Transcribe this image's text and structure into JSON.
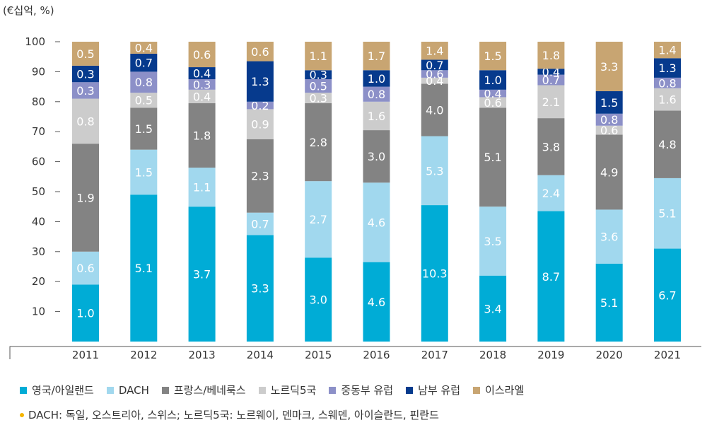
{
  "chart_data": {
    "type": "bar",
    "stacked": true,
    "unit_label": "(€십억, %)",
    "ylim": [
      0,
      100
    ],
    "yticks": [
      10,
      20,
      30,
      40,
      50,
      60,
      70,
      80,
      90,
      100
    ],
    "categories": [
      "2011",
      "2012",
      "2013",
      "2014",
      "2015",
      "2016",
      "2017",
      "2018",
      "2019",
      "2020",
      "2021"
    ],
    "series": [
      {
        "name": "영국/아일랜드",
        "color": "#00acd6",
        "values": [
          1.0,
          5.1,
          3.7,
          3.3,
          3.0,
          4.6,
          10.3,
          3.4,
          8.7,
          5.1,
          6.7
        ],
        "percents": [
          19,
          49,
          45,
          35.5,
          28,
          26.5,
          45.5,
          22,
          43.5,
          26,
          31
        ]
      },
      {
        "name": "DACH",
        "color": "#a1d8ee",
        "values": [
          0.6,
          1.5,
          1.1,
          0.7,
          2.7,
          4.6,
          5.3,
          3.5,
          2.4,
          3.6,
          5.1
        ],
        "percents": [
          11,
          15,
          13,
          7.5,
          25.5,
          26.5,
          23,
          23,
          12,
          18,
          23.5
        ]
      },
      {
        "name": "프랑스/베네룩스",
        "color": "#838383",
        "values": [
          1.9,
          1.5,
          1.8,
          2.3,
          2.8,
          3.0,
          4.0,
          5.1,
          3.8,
          4.9,
          4.8
        ],
        "percents": [
          36,
          14,
          21.5,
          24.5,
          26,
          17.5,
          17.5,
          33,
          19,
          25,
          22.5
        ]
      },
      {
        "name": "노르딕5국",
        "color": "#cccccc",
        "values": [
          0.8,
          0.5,
          0.4,
          0.9,
          0.3,
          1.6,
          0.4,
          0.6,
          2.1,
          0.6,
          1.6
        ],
        "percents": [
          15,
          5,
          4.5,
          10,
          3.5,
          9.5,
          2,
          3.5,
          11,
          3,
          7.5
        ]
      },
      {
        "name": "중동부 유럽",
        "color": "#8c90c8",
        "values": [
          0.3,
          0.8,
          0.3,
          0.2,
          0.5,
          0.8,
          0.6,
          0.4,
          0.7,
          0.8,
          0.8
        ],
        "percents": [
          5.5,
          7,
          3.5,
          2.5,
          4.5,
          5,
          2.5,
          2.5,
          3.5,
          4,
          3.5
        ]
      },
      {
        "name": "남부 유럽",
        "color": "#063a8d",
        "values": [
          0.3,
          0.7,
          0.4,
          1.3,
          0.3,
          1.0,
          0.7,
          1.0,
          0.4,
          1.5,
          1.3
        ],
        "percents": [
          5.5,
          6,
          4,
          13.5,
          3,
          5.5,
          3.5,
          6.5,
          2,
          7.5,
          6.5
        ]
      },
      {
        "name": "이스라엘",
        "color": "#c8a572",
        "values": [
          0.5,
          0.4,
          0.6,
          0.6,
          1.1,
          1.7,
          1.4,
          1.5,
          1.8,
          3.3,
          1.4
        ],
        "percents": [
          8,
          4,
          8.5,
          6.5,
          9.5,
          9.5,
          6,
          9.5,
          9,
          16.5,
          5.5
        ]
      }
    ],
    "legend_position": "bottom",
    "grid": false
  },
  "footnote": "DACH: 독일, 오스트리아, 스위스; 노르딕5국: 노르웨이, 덴마크, 스웨덴, 아이슬란드, 핀란드"
}
